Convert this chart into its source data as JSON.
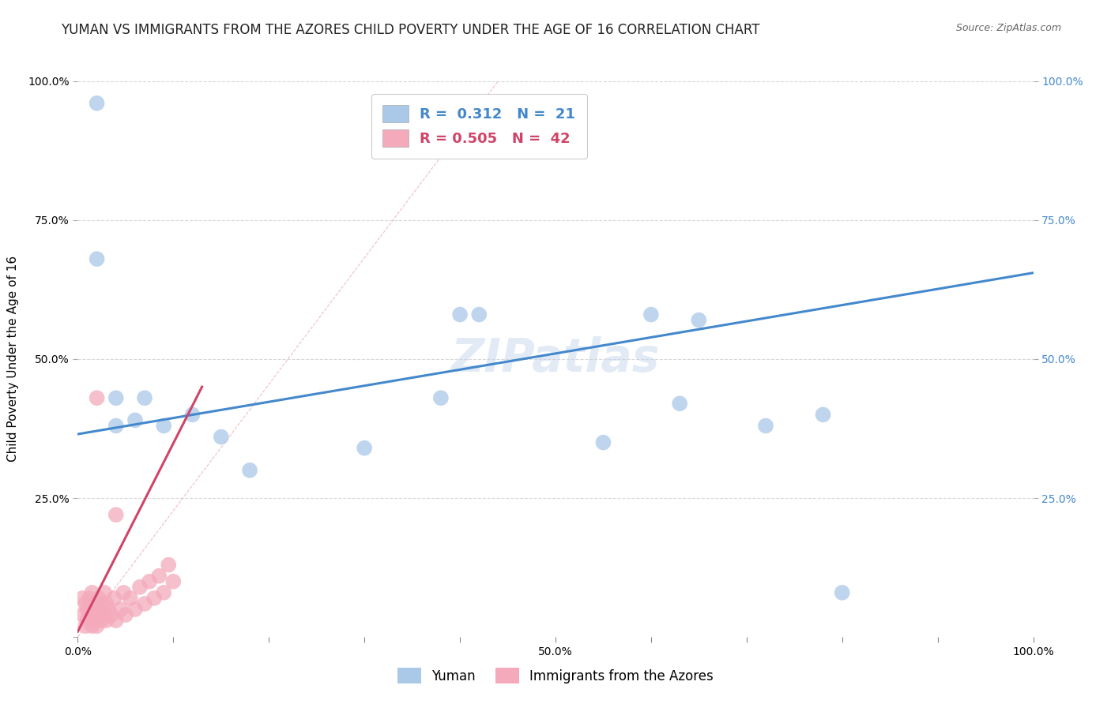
{
  "title": "YUMAN VS IMMIGRANTS FROM THE AZORES CHILD POVERTY UNDER THE AGE OF 16 CORRELATION CHART",
  "source": "Source: ZipAtlas.com",
  "xlabel": "",
  "ylabel": "Child Poverty Under the Age of 16",
  "xlim": [
    0,
    1.0
  ],
  "ylim": [
    0,
    1.0
  ],
  "xticks": [
    0.0,
    0.1,
    0.2,
    0.3,
    0.4,
    0.5,
    0.6,
    0.7,
    0.8,
    0.9,
    1.0
  ],
  "yticks": [
    0.0,
    0.25,
    0.5,
    0.75,
    1.0
  ],
  "xticklabels": [
    "0.0%",
    "",
    "",
    "",
    "",
    "50.0%",
    "",
    "",
    "",
    "",
    "100.0%"
  ],
  "yticklabels": [
    "",
    "25.0%",
    "50.0%",
    "75.0%",
    "100.0%"
  ],
  "right_yticklabels": [
    "25.0%",
    "50.0%",
    "75.0%",
    "100.0%"
  ],
  "series1_name": "Yuman",
  "series1_color": "#aac8e8",
  "series1_line_color": "#4488cc",
  "series1_R": "0.312",
  "series1_N": "21",
  "series2_name": "Immigrants from the Azores",
  "series2_color": "#f4aabb",
  "series2_line_color": "#d04468",
  "series2_R": "0.505",
  "series2_N": "42",
  "watermark": "ZIPatlas",
  "background_color": "#ffffff",
  "grid_color": "#d8d8d8",
  "title_fontsize": 12,
  "axis_label_fontsize": 11,
  "tick_fontsize": 10,
  "yuman_x": [
    0.02,
    0.02,
    0.04,
    0.04,
    0.06,
    0.07,
    0.09,
    0.12,
    0.15,
    0.18,
    0.3,
    0.38,
    0.4,
    0.42,
    0.55,
    0.6,
    0.63,
    0.65,
    0.72,
    0.78,
    0.8
  ],
  "yuman_y": [
    0.96,
    0.68,
    0.43,
    0.38,
    0.39,
    0.43,
    0.38,
    0.4,
    0.36,
    0.3,
    0.34,
    0.43,
    0.58,
    0.58,
    0.35,
    0.58,
    0.42,
    0.57,
    0.38,
    0.4,
    0.08
  ],
  "azores_x": [
    0.005,
    0.005,
    0.008,
    0.008,
    0.01,
    0.01,
    0.012,
    0.012,
    0.015,
    0.015,
    0.015,
    0.018,
    0.018,
    0.02,
    0.02,
    0.02,
    0.022,
    0.022,
    0.025,
    0.025,
    0.028,
    0.028,
    0.03,
    0.03,
    0.032,
    0.035,
    0.038,
    0.04,
    0.04,
    0.045,
    0.048,
    0.05,
    0.055,
    0.06,
    0.065,
    0.07,
    0.075,
    0.08,
    0.085,
    0.09,
    0.095,
    0.1
  ],
  "azores_y": [
    0.04,
    0.07,
    0.02,
    0.06,
    0.03,
    0.05,
    0.04,
    0.07,
    0.02,
    0.05,
    0.08,
    0.03,
    0.06,
    0.02,
    0.04,
    0.43,
    0.04,
    0.07,
    0.03,
    0.06,
    0.04,
    0.08,
    0.03,
    0.06,
    0.05,
    0.04,
    0.07,
    0.03,
    0.22,
    0.05,
    0.08,
    0.04,
    0.07,
    0.05,
    0.09,
    0.06,
    0.1,
    0.07,
    0.11,
    0.08,
    0.13,
    0.1
  ],
  "diag_line_x": [
    0.0,
    0.44
  ],
  "diag_line_y": [
    0.0,
    1.0
  ],
  "blue_line_x": [
    0.0,
    1.0
  ],
  "blue_line_y": [
    0.365,
    0.655
  ],
  "pink_line_x": [
    0.0,
    0.13
  ],
  "pink_line_y": [
    0.01,
    0.45
  ]
}
